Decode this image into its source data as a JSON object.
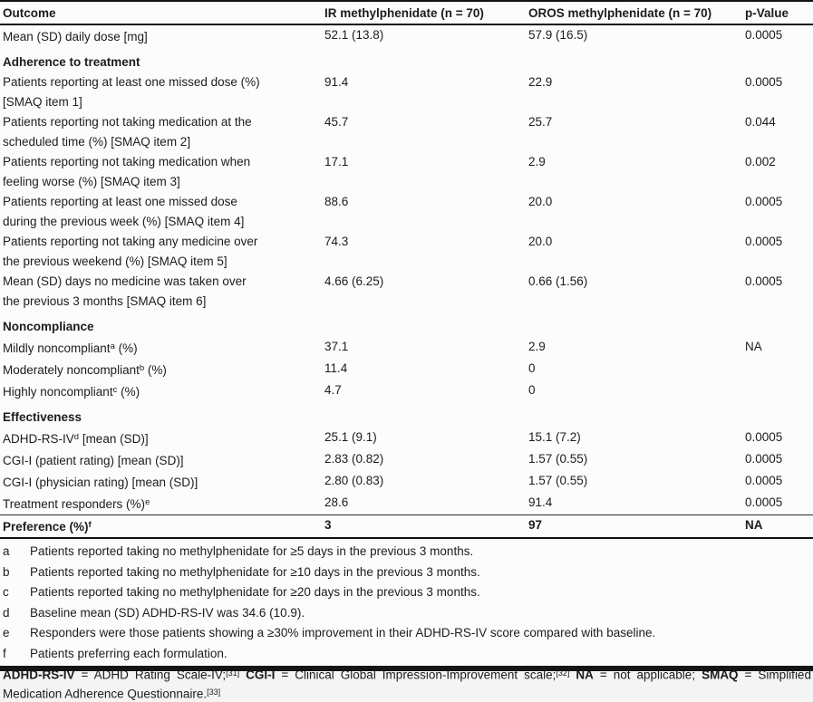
{
  "table": {
    "columns": [
      "Outcome",
      "IR methylphenidate (n = 70)",
      "OROS methylphenidate (n = 70)",
      "p-Value"
    ],
    "rows": [
      {
        "kind": "data",
        "pre": "Mean (SD) daily dose [mg]",
        "sup": "",
        "post": "",
        "ir": "52.1 (13.8)",
        "oros": "57.9 (16.5)",
        "p": "0.0005"
      },
      {
        "kind": "section",
        "pre": "Adherence to treatment"
      },
      {
        "kind": "data",
        "pre": "Patients reporting at least one missed dose (%)\n[SMAQ item 1]",
        "sup": "",
        "post": "",
        "ir": "91.4",
        "oros": "22.9",
        "p": "0.0005"
      },
      {
        "kind": "data",
        "pre": "Patients reporting not taking medication at the\nscheduled time (%) [SMAQ item 2]",
        "sup": "",
        "post": "",
        "ir": "45.7",
        "oros": "25.7",
        "p": "0.044"
      },
      {
        "kind": "data",
        "pre": "Patients reporting not taking medication when\nfeeling worse (%) [SMAQ item 3]",
        "sup": "",
        "post": "",
        "ir": "17.1",
        "oros": "2.9",
        "p": "0.002"
      },
      {
        "kind": "data",
        "pre": "Patients reporting at least one missed dose\nduring the previous week (%) [SMAQ item 4]",
        "sup": "",
        "post": "",
        "ir": "88.6",
        "oros": "20.0",
        "p": "0.0005"
      },
      {
        "kind": "data",
        "pre": "Patients reporting not taking any medicine over\nthe previous weekend (%) [SMAQ item 5]",
        "sup": "",
        "post": "",
        "ir": "74.3",
        "oros": "20.0",
        "p": "0.0005"
      },
      {
        "kind": "data",
        "pre": "Mean (SD) days no medicine was taken over\nthe previous 3 months [SMAQ item 6]",
        "sup": "",
        "post": "",
        "ir": "4.66 (6.25)",
        "oros": "0.66 (1.56)",
        "p": "0.0005"
      },
      {
        "kind": "section",
        "pre": "Noncompliance"
      },
      {
        "kind": "data",
        "pre": "Mildly noncompliant",
        "sup": "a",
        "post": " (%)",
        "ir": "37.1",
        "oros": "2.9",
        "p": "NA"
      },
      {
        "kind": "data",
        "pre": "Moderately noncompliant",
        "sup": "b",
        "post": " (%)",
        "ir": "11.4",
        "oros": "0",
        "p": ""
      },
      {
        "kind": "data",
        "pre": "Highly noncompliant",
        "sup": "c",
        "post": " (%)",
        "ir": "4.7",
        "oros": "0",
        "p": ""
      },
      {
        "kind": "section",
        "pre": "Effectiveness"
      },
      {
        "kind": "data",
        "pre": "ADHD-RS-IV",
        "sup": "d",
        "post": " [mean (SD)]",
        "ir": "25.1 (9.1)",
        "oros": "15.1 (7.2)",
        "p": "0.0005"
      },
      {
        "kind": "data",
        "pre": "CGI-I (patient rating) [mean (SD)]",
        "sup": "",
        "post": "",
        "ir": "2.83 (0.82)",
        "oros": "1.57 (0.55)",
        "p": "0.0005"
      },
      {
        "kind": "data",
        "pre": "CGI-I (physician rating) [mean (SD)]",
        "sup": "",
        "post": "",
        "ir": "2.80 (0.83)",
        "oros": "1.57 (0.55)",
        "p": "0.0005"
      },
      {
        "kind": "data",
        "pre": "Treatment responders (%)",
        "sup": "e",
        "post": "",
        "ir": "28.6",
        "oros": "91.4",
        "p": "0.0005"
      },
      {
        "kind": "data",
        "emphasis": true,
        "separated": true,
        "pre": "Preference (%)",
        "sup": "f",
        "post": "",
        "ir": "3",
        "oros": "97",
        "p": "NA"
      }
    ]
  },
  "footnotes": [
    {
      "marker": "a",
      "text": "Patients reported taking no methylphenidate for ≥5 days in the previous 3 months."
    },
    {
      "marker": "b",
      "text": "Patients reported taking no methylphenidate for ≥10 days in the previous 3 months."
    },
    {
      "marker": "c",
      "text": "Patients reported taking no methylphenidate for ≥20 days in the previous 3 months."
    },
    {
      "marker": "d",
      "text": "Baseline mean (SD) ADHD-RS-IV was 34.6 (10.9)."
    },
    {
      "marker": "e",
      "text": "Responders were those patients showing a ≥30% improvement in their ADHD-RS-IV score compared with baseline."
    },
    {
      "marker": "f",
      "text": "Patients preferring each formulation."
    }
  ],
  "abbreviations": {
    "parts": [
      {
        "style": "b",
        "text": "ADHD-RS-IV"
      },
      {
        "style": "t",
        "text": " = ADHD Rating Scale-IV;"
      },
      {
        "style": "sup",
        "text": "[31]"
      },
      {
        "style": "t",
        "text": " "
      },
      {
        "style": "b",
        "text": "CGI-I"
      },
      {
        "style": "t",
        "text": " = Clinical Global Impression-Improvement scale;"
      },
      {
        "style": "sup",
        "text": "[32]"
      },
      {
        "style": "t",
        "text": " "
      },
      {
        "style": "b",
        "text": "NA"
      },
      {
        "style": "t",
        "text": " = not applicable; "
      },
      {
        "style": "b",
        "text": "SMAQ"
      },
      {
        "style": "t",
        "text": " = Simplified Medication Adherence Questionnaire."
      },
      {
        "style": "sup",
        "text": "[33]"
      }
    ]
  }
}
